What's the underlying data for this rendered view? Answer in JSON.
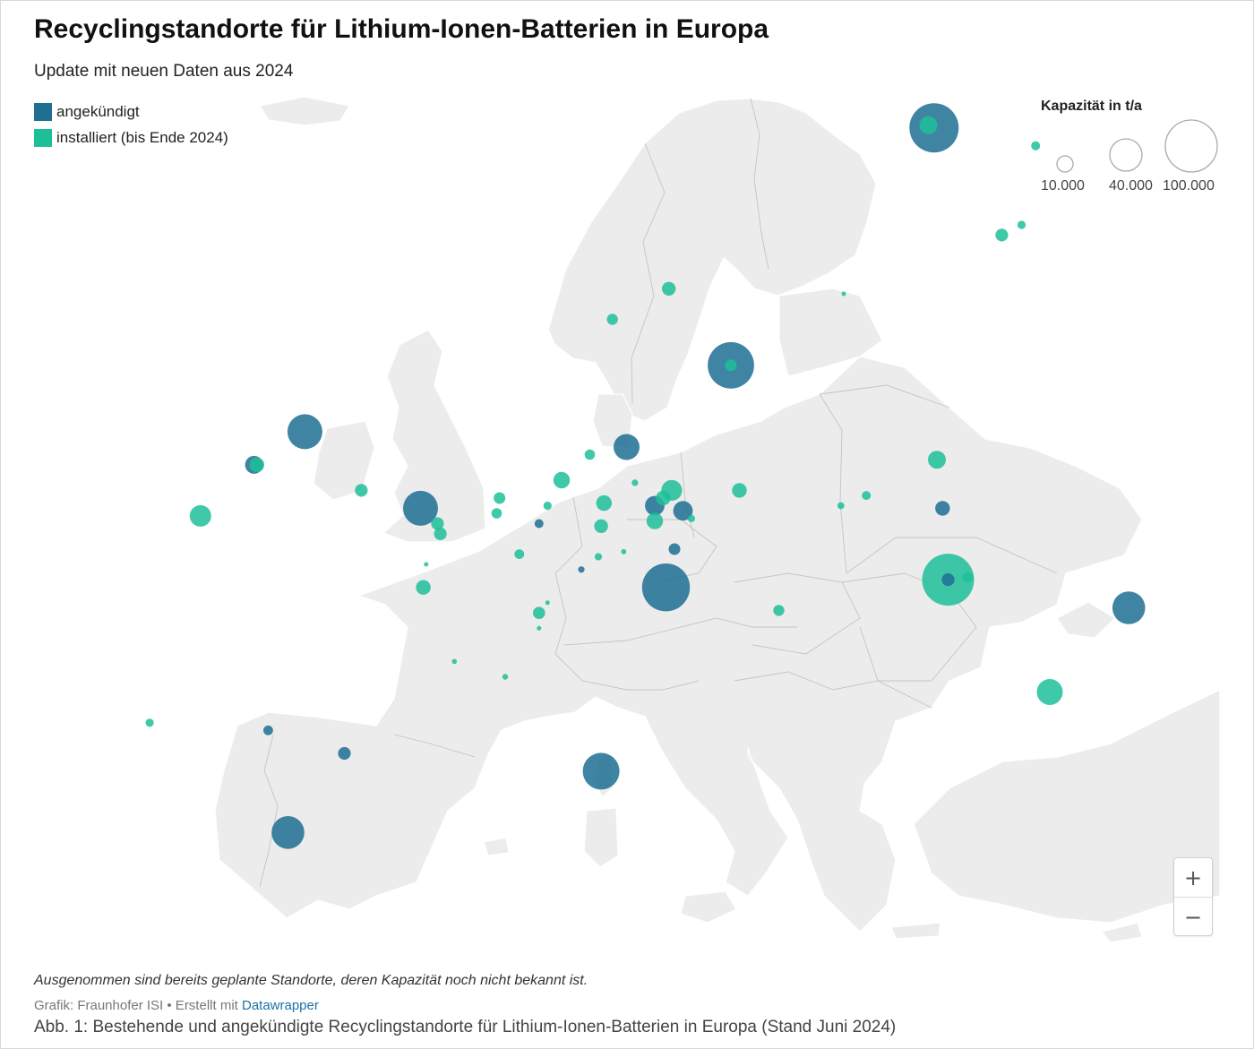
{
  "title": "Recyclingstandorte für Lithium-Ionen-Batterien in Europa",
  "subtitle": "Update mit neuen Daten aus 2024",
  "legend": {
    "items": [
      {
        "label": "angekündigt",
        "color": "#1f6f94"
      },
      {
        "label": "installiert (bis Ende 2024)",
        "color": "#1dbf99"
      }
    ]
  },
  "size_legend": {
    "title": "Kapazität in t/a",
    "values": [
      "10.000",
      "40.000",
      "100.000"
    ]
  },
  "zoom": {
    "in_label": "+",
    "out_label": "−"
  },
  "note": "Ausgenommen sind bereits geplante Standorte, deren Kapazität noch nicht bekannt ist.",
  "credit": {
    "prefix": "Grafik: Fraunhofer ISI • Erstellt mit ",
    "link": "Datawrapper"
  },
  "caption": "Abb. 1: Bestehende und angekündigte Recyclingstandorte für Lithium-Ionen-Batterien in Europa (Stand Juni 2024)",
  "colors": {
    "announced": "#1f6f94",
    "installed": "#1dbf99",
    "land": "#ececec",
    "border": "#bdbdbd"
  },
  "chart_data": {
    "type": "map",
    "size_unit": "t/a",
    "sites": [
      {
        "status": "angekündigt",
        "lon": 21.2,
        "lat": 65.8,
        "capacity": 90000
      },
      {
        "status": "installiert",
        "lon": 21.0,
        "lat": 65.9,
        "capacity": 12000
      },
      {
        "status": "installiert",
        "lon": 24.8,
        "lat": 65.1,
        "capacity": 3000
      },
      {
        "status": "installiert",
        "lon": 24.3,
        "lat": 62.0,
        "capacity": 2500
      },
      {
        "status": "installiert",
        "lon": 23.6,
        "lat": 61.6,
        "capacity": 6000
      },
      {
        "status": "installiert",
        "lon": 18.0,
        "lat": 59.3,
        "capacity": 500
      },
      {
        "status": "installiert",
        "lon": 11.8,
        "lat": 59.5,
        "capacity": 7000
      },
      {
        "status": "installiert",
        "lon": 9.8,
        "lat": 58.3,
        "capacity": 4500
      },
      {
        "status": "angekündigt",
        "lon": 14.0,
        "lat": 56.5,
        "capacity": 80000
      },
      {
        "status": "installiert",
        "lon": 14.0,
        "lat": 56.5,
        "capacity": 5000
      },
      {
        "status": "angekündigt",
        "lon": -1.1,
        "lat": 53.9,
        "capacity": 45000
      },
      {
        "status": "angekündigt",
        "lon": -2.9,
        "lat": 52.6,
        "capacity": 12000
      },
      {
        "status": "installiert",
        "lon": -2.8,
        "lat": 52.6,
        "capacity": 8000
      },
      {
        "status": "installiert",
        "lon": 0.9,
        "lat": 51.6,
        "capacity": 6000
      },
      {
        "status": "installiert",
        "lon": -4.8,
        "lat": 50.6,
        "capacity": 17000
      },
      {
        "status": "angekündigt",
        "lon": 3.0,
        "lat": 50.9,
        "capacity": 45000
      },
      {
        "status": "installiert",
        "lon": 3.6,
        "lat": 50.3,
        "capacity": 6000
      },
      {
        "status": "installiert",
        "lon": 3.7,
        "lat": 49.9,
        "capacity": 6000
      },
      {
        "status": "installiert",
        "lon": 5.8,
        "lat": 51.3,
        "capacity": 5000
      },
      {
        "status": "installiert",
        "lon": 5.7,
        "lat": 50.7,
        "capacity": 4000
      },
      {
        "status": "installiert",
        "lon": 7.5,
        "lat": 51.0,
        "capacity": 2500
      },
      {
        "status": "angekündigt",
        "lon": 7.2,
        "lat": 50.3,
        "capacity": 3000
      },
      {
        "status": "installiert",
        "lon": 8.0,
        "lat": 52.0,
        "capacity": 10000
      },
      {
        "status": "installiert",
        "lon": 9.0,
        "lat": 53.0,
        "capacity": 4000
      },
      {
        "status": "angekündigt",
        "lon": 10.3,
        "lat": 53.3,
        "capacity": 25000
      },
      {
        "status": "installiert",
        "lon": 9.5,
        "lat": 51.1,
        "capacity": 9000
      },
      {
        "status": "installiert",
        "lon": 9.4,
        "lat": 50.2,
        "capacity": 7000
      },
      {
        "status": "installiert",
        "lon": 10.6,
        "lat": 51.9,
        "capacity": 1500
      },
      {
        "status": "installiert",
        "lon": 11.9,
        "lat": 51.6,
        "capacity": 16000
      },
      {
        "status": "installiert",
        "lon": 11.6,
        "lat": 51.3,
        "capacity": 8000
      },
      {
        "status": "angekündigt",
        "lon": 11.3,
        "lat": 51.0,
        "capacity": 14000
      },
      {
        "status": "angekündigt",
        "lon": 12.3,
        "lat": 50.8,
        "capacity": 14000
      },
      {
        "status": "installiert",
        "lon": 11.3,
        "lat": 50.4,
        "capacity": 10000
      },
      {
        "status": "installiert",
        "lon": 12.6,
        "lat": 50.5,
        "capacity": 2000
      },
      {
        "status": "installiert",
        "lon": 14.3,
        "lat": 51.6,
        "capacity": 8000
      },
      {
        "status": "angekündigt",
        "lon": 12.0,
        "lat": 49.3,
        "capacity": 5000
      },
      {
        "status": "installiert",
        "lon": 10.2,
        "lat": 49.2,
        "capacity": 1000
      },
      {
        "status": "angekündigt",
        "lon": 11.7,
        "lat": 47.8,
        "capacity": 85000
      },
      {
        "status": "angekündigt",
        "lon": 8.7,
        "lat": 48.5,
        "capacity": 1500
      },
      {
        "status": "installiert",
        "lon": 9.3,
        "lat": 49.0,
        "capacity": 2000
      },
      {
        "status": "installiert",
        "lon": 6.5,
        "lat": 49.1,
        "capacity": 3500
      },
      {
        "status": "installiert",
        "lon": 3.1,
        "lat": 47.8,
        "capacity": 8000
      },
      {
        "status": "installiert",
        "lon": 3.2,
        "lat": 48.7,
        "capacity": 300
      },
      {
        "status": "installiert",
        "lon": 7.2,
        "lat": 46.8,
        "capacity": 5500
      },
      {
        "status": "installiert",
        "lon": 7.5,
        "lat": 47.2,
        "capacity": 600
      },
      {
        "status": "installiert",
        "lon": 7.2,
        "lat": 46.2,
        "capacity": 600
      },
      {
        "status": "installiert",
        "lon": 4.2,
        "lat": 44.9,
        "capacity": 900
      },
      {
        "status": "installiert",
        "lon": 6.0,
        "lat": 44.3,
        "capacity": 1200
      },
      {
        "status": "installiert",
        "lon": 15.7,
        "lat": 46.9,
        "capacity": 4500
      },
      {
        "status": "installiert",
        "lon": 17.9,
        "lat": 51.0,
        "capacity": 1800
      },
      {
        "status": "installiert",
        "lon": 18.8,
        "lat": 51.4,
        "capacity": 3000
      },
      {
        "status": "installiert",
        "lon": 21.3,
        "lat": 52.8,
        "capacity": 12000
      },
      {
        "status": "angekündigt",
        "lon": 21.5,
        "lat": 50.9,
        "capacity": 8000
      },
      {
        "status": "installiert",
        "lon": 21.7,
        "lat": 48.1,
        "capacity": 100000
      },
      {
        "status": "angekündigt",
        "lon": 21.7,
        "lat": 48.1,
        "capacity": 6000
      },
      {
        "status": "installiert",
        "lon": 22.4,
        "lat": 48.2,
        "capacity": 4000
      },
      {
        "status": "angekündigt",
        "lon": 28.1,
        "lat": 47.0,
        "capacity": 40000
      },
      {
        "status": "installiert",
        "lon": 25.3,
        "lat": 43.7,
        "capacity": 25000
      },
      {
        "status": "installiert",
        "lon": -6.6,
        "lat": 42.5,
        "capacity": 2500
      },
      {
        "status": "angekündigt",
        "lon": -2.4,
        "lat": 42.2,
        "capacity": 3500
      },
      {
        "status": "angekündigt",
        "lon": 0.3,
        "lat": 41.3,
        "capacity": 6000
      },
      {
        "status": "angekündigt",
        "lon": 9.4,
        "lat": 40.6,
        "capacity": 50000
      },
      {
        "status": "angekündigt",
        "lon": -1.7,
        "lat": 38.2,
        "capacity": 40000
      }
    ]
  }
}
